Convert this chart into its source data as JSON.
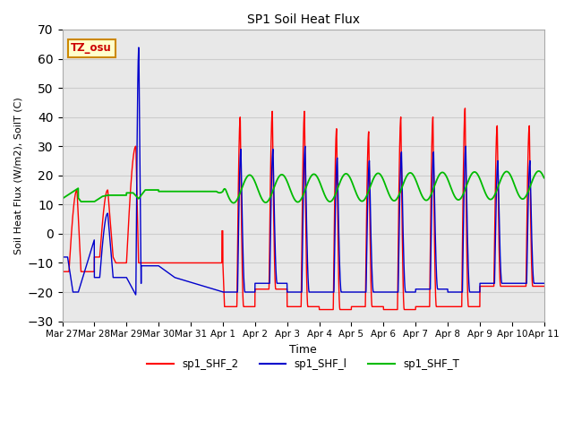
{
  "title": "SP1 Soil Heat Flux",
  "xlabel": "Time",
  "ylabel": "Soil Heat Flux (W/m2), SoilT (C)",
  "ylim": [
    -30,
    70
  ],
  "yticks": [
    -30,
    -20,
    -10,
    0,
    10,
    20,
    30,
    40,
    50,
    60,
    70
  ],
  "xtick_labels": [
    "Mar 27",
    "Mar 28",
    "Mar 29",
    "Mar 30",
    "Mar 31",
    "Apr 1",
    "Apr 2",
    "Apr 3",
    "Apr 4",
    "Apr 5",
    "Apr 6",
    "Apr 7",
    "Apr 8",
    "Apr 9",
    "Apr 10",
    "Apr 11"
  ],
  "colors": {
    "shf2": "#ff0000",
    "shf1": "#0000cc",
    "shft": "#00bb00",
    "tz_osu_bg": "#ffffcc",
    "tz_osu_border": "#cc8800",
    "tz_osu_text": "#cc0000",
    "grid": "#cccccc",
    "plot_bg": "#e8e8e8"
  },
  "legend_labels": [
    "sp1_SHF_2",
    "sp1_SHF_l",
    "sp1_SHF_T"
  ],
  "tz_label": "TZ_osu"
}
